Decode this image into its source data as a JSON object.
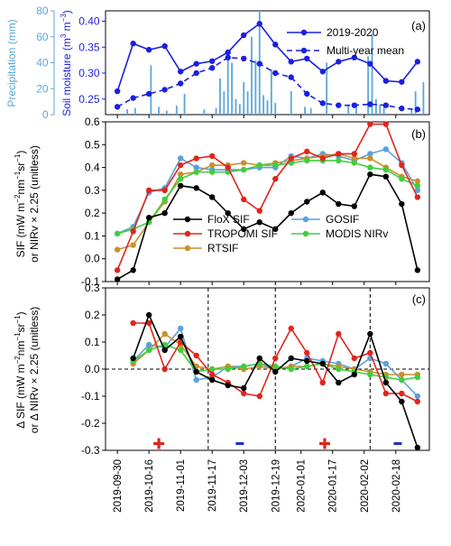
{
  "figure": {
    "dates": [
      "2019-09-30",
      "2019-10-16",
      "2019-11-01",
      "2019-11-17",
      "2019-12-03",
      "2019-12-19",
      "2020-01-01",
      "2020-01-17",
      "2020-02-02",
      "2020-02-18"
    ],
    "colors": {
      "precip_blue": "#5ba7d9",
      "black": "#000000",
      "tropomi_red": "#e2241c",
      "rtsif_gold": "#c9902a",
      "gosif_blue": "#5aa0dc",
      "nirv_green": "#3ecf3e"
    }
  },
  "chart_data": [
    {
      "panel": "a",
      "type": "line",
      "panel_label": "(a)",
      "x_range": [
        "2019-09-24",
        "2020-03-06"
      ],
      "y_left": {
        "label": "Precipitation (mm)",
        "ylim": [
          0,
          80
        ],
        "ticks": [
          0,
          20,
          40,
          60,
          80
        ]
      },
      "y_right": {
        "label": "Soil moisture (m^3 m^-3)",
        "ylim": [
          0.22,
          0.42
        ],
        "ticks": [
          0.25,
          0.3,
          0.35,
          0.4
        ]
      },
      "series": [
        {
          "name": "2019-2020",
          "style": "solid",
          "x": [
            "2019-09-30",
            "2019-10-08",
            "2019-10-16",
            "2019-10-24",
            "2019-11-01",
            "2019-11-09",
            "2019-11-17",
            "2019-11-25",
            "2019-12-03",
            "2019-12-11",
            "2019-12-19",
            "2019-12-27",
            "2020-01-04",
            "2020-01-12",
            "2020-01-20",
            "2020-01-28",
            "2020-02-05",
            "2020-02-13",
            "2020-02-21",
            "2020-02-29"
          ],
          "values": [
            0.265,
            0.357,
            0.345,
            0.352,
            0.303,
            0.318,
            0.323,
            0.34,
            0.373,
            0.395,
            0.355,
            0.322,
            0.328,
            0.303,
            0.322,
            0.33,
            0.318,
            0.285,
            0.283,
            0.322
          ]
        },
        {
          "name": "Multi-year mean",
          "style": "dashed",
          "x": [
            "2019-09-30",
            "2019-10-08",
            "2019-10-16",
            "2019-10-24",
            "2019-11-01",
            "2019-11-09",
            "2019-11-17",
            "2019-11-25",
            "2019-12-03",
            "2019-12-11",
            "2019-12-19",
            "2019-12-27",
            "2020-01-04",
            "2020-01-12",
            "2020-01-20",
            "2020-01-28",
            "2020-02-05",
            "2020-02-13",
            "2020-02-21",
            "2020-02-29"
          ],
          "values": [
            0.235,
            0.252,
            0.26,
            0.268,
            0.28,
            0.3,
            0.31,
            0.33,
            0.328,
            0.318,
            0.3,
            0.292,
            0.26,
            0.242,
            0.238,
            0.238,
            0.24,
            0.238,
            0.232,
            0.23
          ]
        }
      ],
      "precipitation_bars": {
        "name": "Precipitation",
        "x": [
          "2019-10-05",
          "2019-10-09",
          "2019-10-17",
          "2019-10-21",
          "2019-10-25",
          "2019-10-30",
          "2019-11-03",
          "2019-11-13",
          "2019-11-19",
          "2019-11-21",
          "2019-11-23",
          "2019-11-25",
          "2019-11-27",
          "2019-11-29",
          "2019-12-01",
          "2019-12-03",
          "2019-12-05",
          "2019-12-07",
          "2019-12-09",
          "2019-12-11",
          "2019-12-13",
          "2019-12-15",
          "2019-12-17",
          "2019-12-19",
          "2019-12-27",
          "2020-01-03",
          "2020-01-06",
          "2020-01-14",
          "2020-01-25",
          "2020-01-29",
          "2020-02-04",
          "2020-02-06",
          "2020-02-08",
          "2020-02-10",
          "2020-02-12",
          "2020-02-26",
          "2020-02-28",
          "2020-03-03"
        ],
        "values": [
          4,
          5,
          38,
          6,
          3,
          7,
          16,
          4,
          5,
          28,
          18,
          47,
          40,
          12,
          8,
          25,
          18,
          60,
          42,
          80,
          15,
          11,
          35,
          9,
          18,
          6,
          5,
          40,
          7,
          9,
          45,
          62,
          12,
          8,
          6,
          5,
          18,
          25
        ]
      }
    },
    {
      "panel": "b",
      "type": "line",
      "panel_label": "(b)",
      "x_range": [
        "2019-09-24",
        "2020-03-06"
      ],
      "ylabel": "SIF (mW m^-2 nm^-1 sr^-1) or NIRv × 2.25 (unitless)",
      "ylim": [
        -0.1,
        0.6
      ],
      "y_ticks": [
        -0.1,
        0,
        0.1,
        0.2,
        0.3,
        0.4,
        0.5,
        0.6
      ],
      "x": [
        "2019-09-30",
        "2019-10-08",
        "2019-10-16",
        "2019-10-24",
        "2019-11-01",
        "2019-11-09",
        "2019-11-17",
        "2019-11-25",
        "2019-12-03",
        "2019-12-11",
        "2019-12-19",
        "2019-12-27",
        "2020-01-04",
        "2020-01-12",
        "2020-01-20",
        "2020-01-28",
        "2020-02-05",
        "2020-02-13",
        "2020-02-21",
        "2020-02-29"
      ],
      "series": [
        {
          "name": "FloX SIF",
          "color": "#000000",
          "values": [
            -0.09,
            -0.05,
            0.18,
            0.2,
            0.32,
            0.31,
            0.27,
            0.2,
            0.13,
            0.16,
            0.13,
            0.2,
            0.25,
            0.29,
            0.24,
            0.23,
            0.37,
            0.36,
            0.24,
            -0.05
          ]
        },
        {
          "name": "TROPOMI SIF",
          "color": "#e2241c",
          "values": [
            -0.05,
            0.12,
            0.3,
            0.3,
            0.41,
            0.44,
            0.45,
            0.4,
            0.26,
            0.21,
            0.35,
            0.44,
            0.47,
            0.44,
            0.46,
            0.46,
            0.59,
            0.59,
            0.41,
            0.27
          ]
        },
        {
          "name": "RTSIF",
          "color": "#c9902a",
          "values": [
            0.04,
            0.06,
            0.16,
            0.25,
            0.37,
            0.38,
            0.41,
            0.41,
            0.42,
            0.41,
            0.42,
            0.43,
            0.44,
            0.45,
            0.46,
            0.44,
            0.44,
            0.4,
            0.36,
            0.34
          ]
        },
        {
          "name": "GOSIF",
          "color": "#5aa0dc",
          "values": [
            0.11,
            0.14,
            0.29,
            0.31,
            0.44,
            0.4,
            0.39,
            0.39,
            0.39,
            0.4,
            0.4,
            0.45,
            0.44,
            0.46,
            0.45,
            0.43,
            0.46,
            0.48,
            0.42,
            0.3
          ]
        },
        {
          "name": "MODIS NIRv",
          "color": "#3ecf3e",
          "values": [
            0.11,
            0.13,
            0.16,
            0.26,
            0.35,
            0.38,
            0.38,
            0.38,
            0.39,
            0.41,
            0.41,
            0.42,
            0.43,
            0.43,
            0.43,
            0.42,
            0.4,
            0.39,
            0.35,
            0.32
          ]
        }
      ]
    },
    {
      "panel": "c",
      "type": "line",
      "panel_label": "(c)",
      "x_range": [
        "2019-09-24",
        "2020-03-06"
      ],
      "ylabel": "Δ SIF (mW m^-2 nm^-1 sr^-1) or Δ NIRv × 2.25 (unitless)",
      "ylim": [
        -0.3,
        0.3
      ],
      "y_ticks": [
        -0.3,
        -0.2,
        -0.1,
        0,
        0.1,
        0.2,
        0.3
      ],
      "zero_line": "dashed",
      "divider_dates": [
        "2019-11-15",
        "2019-12-19",
        "2020-02-05"
      ],
      "markers": [
        {
          "symbol": "+",
          "x": "2019-10-21",
          "y": -0.275,
          "color": "#e2241c"
        },
        {
          "symbol": "-",
          "x": "2019-12-01",
          "y": -0.275,
          "color": "#2030c8"
        },
        {
          "symbol": "+",
          "x": "2020-01-13",
          "y": -0.275,
          "color": "#e2241c"
        },
        {
          "symbol": "-",
          "x": "2020-02-19",
          "y": -0.275,
          "color": "#2030c8"
        }
      ],
      "x": [
        "2019-10-08",
        "2019-10-16",
        "2019-10-24",
        "2019-11-01",
        "2019-11-09",
        "2019-11-17",
        "2019-11-25",
        "2019-12-03",
        "2019-12-11",
        "2019-12-19",
        "2019-12-27",
        "2020-01-04",
        "2020-01-12",
        "2020-01-20",
        "2020-01-28",
        "2020-02-05",
        "2020-02-13",
        "2020-02-21",
        "2020-02-29"
      ],
      "series": [
        {
          "name": "FloX SIF",
          "color": "#000000",
          "values": [
            0.04,
            0.2,
            0.07,
            0.12,
            -0.01,
            -0.04,
            -0.06,
            -0.07,
            0.04,
            -0.01,
            0.04,
            0.03,
            0.02,
            -0.05,
            -0.02,
            0.13,
            -0.05,
            -0.12,
            -0.29
          ]
        },
        {
          "name": "TROPOMI SIF",
          "color": "#e2241c",
          "values": [
            0.17,
            0.17,
            0.0,
            0.1,
            0.05,
            -0.02,
            -0.05,
            -0.09,
            -0.1,
            0.04,
            0.15,
            0.06,
            -0.05,
            0.13,
            0.04,
            0.06,
            -0.09,
            -0.09,
            -0.12
          ]
        },
        {
          "name": "RTSIF",
          "color": "#c9902a",
          "values": [
            0.02,
            0.07,
            0.13,
            0.09,
            0.01,
            0.0,
            0.01,
            0.0,
            0.01,
            0.0,
            0.01,
            0.01,
            0.02,
            0.01,
            0.0,
            -0.01,
            -0.02,
            -0.02,
            -0.02
          ]
        },
        {
          "name": "GOSIF",
          "color": "#5aa0dc",
          "values": [
            0.03,
            0.09,
            0.08,
            0.15,
            -0.04,
            -0.03,
            0.01,
            0.01,
            0.02,
            0.0,
            0.01,
            0.04,
            0.03,
            0.02,
            0.0,
            0.04,
            0.02,
            -0.04,
            -0.1
          ]
        },
        {
          "name": "MODIS NIRv",
          "color": "#3ecf3e",
          "values": [
            0.03,
            0.07,
            0.09,
            0.07,
            -0.01,
            0.0,
            0.0,
            0.01,
            0.02,
            0.01,
            0.0,
            0.01,
            0.02,
            0.0,
            -0.01,
            -0.02,
            -0.03,
            -0.04,
            -0.03
          ]
        }
      ]
    }
  ]
}
